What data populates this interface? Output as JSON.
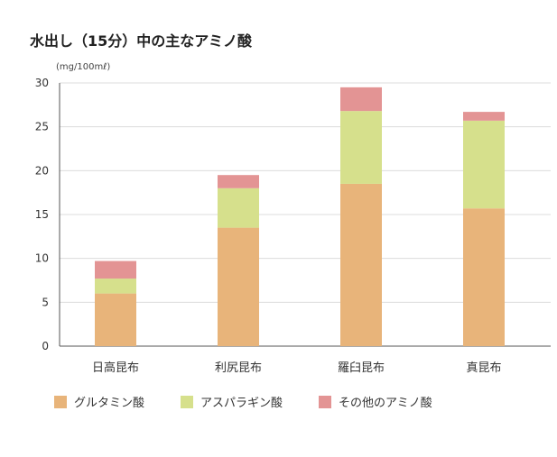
{
  "chart_data": {
    "type": "bar",
    "stacked": true,
    "title": "水出し（15分）中の主なアミノ酸",
    "ylabel": "(mg/100mℓ)",
    "xlabel": "",
    "ylim": [
      0,
      30
    ],
    "yticks": [
      0,
      5,
      10,
      15,
      20,
      25,
      30
    ],
    "categories": [
      "日高昆布",
      "利尻昆布",
      "羅臼昆布",
      "真昆布"
    ],
    "series": [
      {
        "name": "グルタミン酸",
        "color": "#e8b47a",
        "values": [
          6.0,
          13.5,
          18.5,
          15.7
        ]
      },
      {
        "name": "アスパラギン酸",
        "color": "#d6e08c",
        "values": [
          1.7,
          4.5,
          8.3,
          10.0
        ]
      },
      {
        "name": "その他のアミノ酸",
        "color": "#e39494",
        "values": [
          2.0,
          1.5,
          2.7,
          1.0
        ]
      }
    ],
    "grid": true,
    "legend_position": "bottom"
  }
}
